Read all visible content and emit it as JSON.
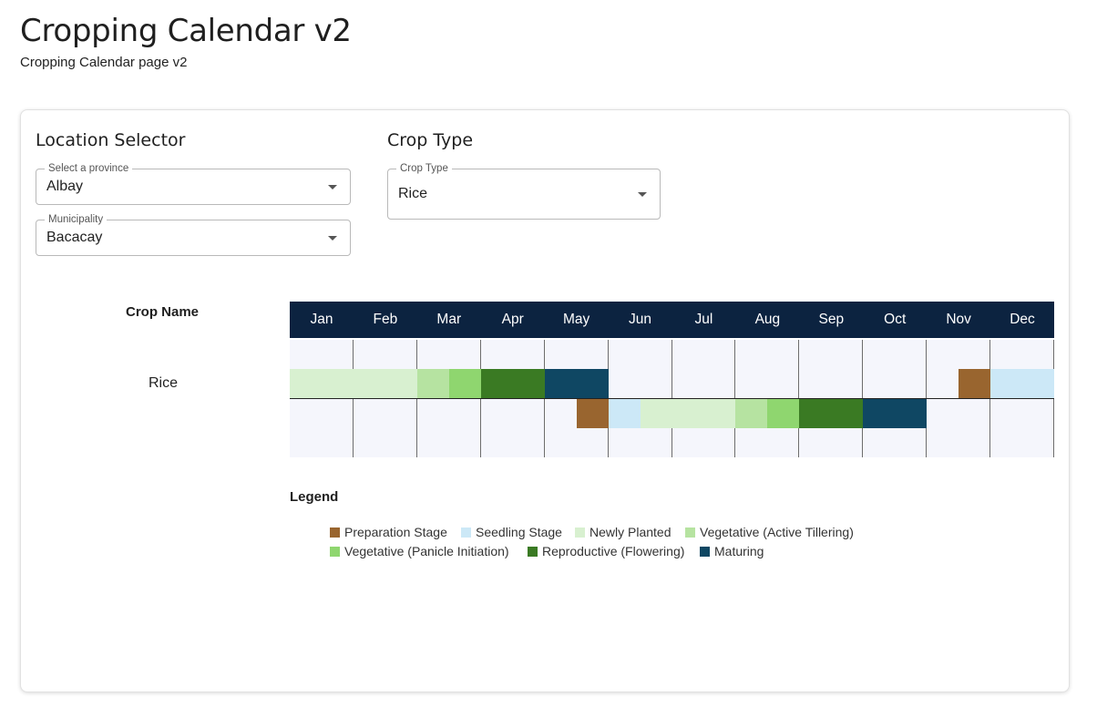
{
  "page": {
    "title": "Cropping Calendar v2",
    "subtitle": "Cropping Calendar page v2"
  },
  "location_selector": {
    "heading": "Location Selector",
    "province": {
      "label": "Select a province",
      "value": "Albay"
    },
    "municipality": {
      "label": "Municipality",
      "value": "Bacacay"
    }
  },
  "crop_type": {
    "heading": "Crop Type",
    "select": {
      "label": "Crop Type",
      "value": "Rice"
    }
  },
  "calendar": {
    "crop_name_header": "Crop Name",
    "months": [
      "Jan",
      "Feb",
      "Mar",
      "Apr",
      "May",
      "Jun",
      "Jul",
      "Aug",
      "Sep",
      "Oct",
      "Nov",
      "Dec"
    ],
    "crops": [
      {
        "name": "Rice",
        "seasons": [
          {
            "segments": [
              {
                "stage": "newly_planted",
                "start": 0.0,
                "end": 2.0
              },
              {
                "stage": "vegetative_tillering",
                "start": 2.0,
                "end": 2.5
              },
              {
                "stage": "vegetative_panicle",
                "start": 2.5,
                "end": 3.0
              },
              {
                "stage": "reproductive",
                "start": 3.0,
                "end": 4.0
              },
              {
                "stage": "maturing",
                "start": 4.0,
                "end": 5.0
              },
              {
                "stage": "preparation",
                "start": 10.5,
                "end": 11.0
              },
              {
                "stage": "seedling",
                "start": 11.0,
                "end": 12.0
              }
            ]
          },
          {
            "segments": [
              {
                "stage": "preparation",
                "start": 4.5,
                "end": 5.0
              },
              {
                "stage": "seedling",
                "start": 5.0,
                "end": 5.5
              },
              {
                "stage": "newly_planted",
                "start": 5.5,
                "end": 7.0
              },
              {
                "stage": "vegetative_tillering",
                "start": 7.0,
                "end": 7.5
              },
              {
                "stage": "vegetative_panicle",
                "start": 7.5,
                "end": 8.0
              },
              {
                "stage": "reproductive",
                "start": 8.0,
                "end": 9.0
              },
              {
                "stage": "maturing",
                "start": 9.0,
                "end": 10.0
              }
            ]
          }
        ]
      }
    ]
  },
  "legend": {
    "title": "Legend",
    "items": [
      {
        "key": "preparation",
        "label": "Preparation Stage",
        "color": "#99652f"
      },
      {
        "key": "seedling",
        "label": "Seedling Stage",
        "color": "#cce8f7"
      },
      {
        "key": "newly_planted",
        "label": "Newly Planted",
        "color": "#d8f0d0"
      },
      {
        "key": "vegetative_tillering",
        "label": "Vegetative (Active Tillering)",
        "color": "#b6e3a1"
      },
      {
        "key": "vegetative_panicle",
        "label": "Vegetative (Panicle Initiation)",
        "color": "#8fd66f"
      },
      {
        "key": "reproductive",
        "label": "Reproductive (Flowering)",
        "color": "#3a7a23"
      },
      {
        "key": "maturing",
        "label": "Maturing",
        "color": "#0f4763"
      }
    ]
  },
  "colors": {
    "header_bg": "#0c2340",
    "grid_bg": "#f5f6fc"
  }
}
